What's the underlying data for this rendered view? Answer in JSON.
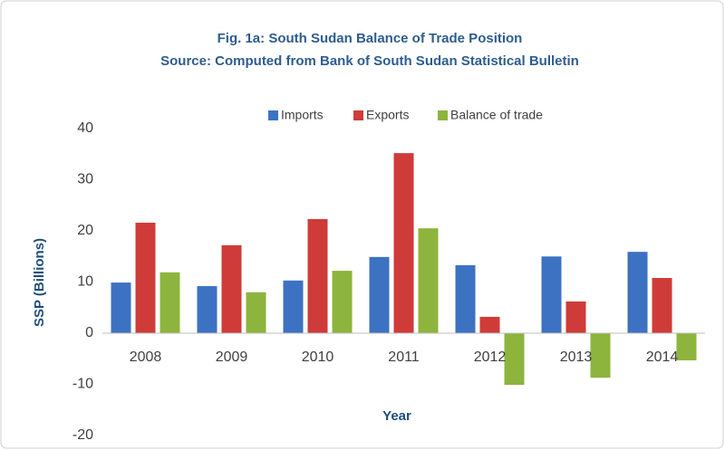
{
  "chart_data": {
    "type": "bar",
    "title": "Fig. 1a: South Sudan Balance of Trade Position",
    "subtitle": "Source: Computed from Bank of  South Sudan Statistical Bulletin",
    "xlabel": "Year",
    "ylabel": "SSP (Billions)",
    "categories": [
      "2008",
      "2009",
      "2010",
      "2011",
      "2012",
      "2013",
      "2014"
    ],
    "series": [
      {
        "name": "Imports",
        "color": "#3d72c2",
        "values": [
          9.9,
          9.2,
          10.3,
          14.9,
          13.3,
          15.0,
          15.9
        ]
      },
      {
        "name": "Exports",
        "color": "#cf3b38",
        "values": [
          21.6,
          17.2,
          22.3,
          35.2,
          3.2,
          6.2,
          10.8
        ]
      },
      {
        "name": "Balance of trade",
        "color": "#8db43c",
        "values": [
          11.9,
          8.0,
          12.2,
          20.5,
          -10.1,
          -8.7,
          -5.3
        ]
      }
    ],
    "ylim": [
      -20,
      40
    ],
    "yticks": [
      -20,
      -10,
      0,
      10,
      20,
      30,
      40
    ],
    "grid": false,
    "legend": "top"
  }
}
